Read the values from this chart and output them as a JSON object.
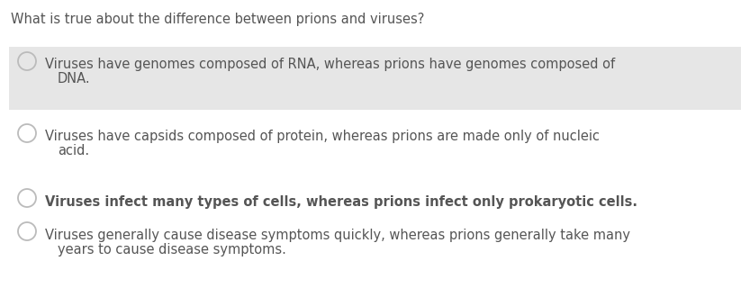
{
  "question": "What is true about the difference between prions and viruses?",
  "options": [
    {
      "line1": "Viruses have genomes composed of RNA, whereas prions have genomes composed of",
      "line2": "DNA.",
      "highlighted": true,
      "bold": false
    },
    {
      "line1": "Viruses have capsids composed of protein, whereas prions are made only of nucleic",
      "line2": "acid.",
      "highlighted": false,
      "bold": false
    },
    {
      "line1": "Viruses infect many types of cells, whereas prions infect only prokaryotic cells.",
      "line2": "",
      "highlighted": false,
      "bold": true
    },
    {
      "line1": "Viruses generally cause disease symptoms quickly, whereas prions generally take many",
      "line2": "years to cause disease symptoms.",
      "highlighted": false,
      "bold": false
    }
  ],
  "bg_color": "#ffffff",
  "highlight_color": "#e6e6e6",
  "text_color": "#555555",
  "circle_edge_color": "#bbbbbb",
  "question_fontsize": 10.5,
  "option_fontsize": 10.5,
  "fig_width": 8.33,
  "fig_height": 3.2,
  "dpi": 100
}
